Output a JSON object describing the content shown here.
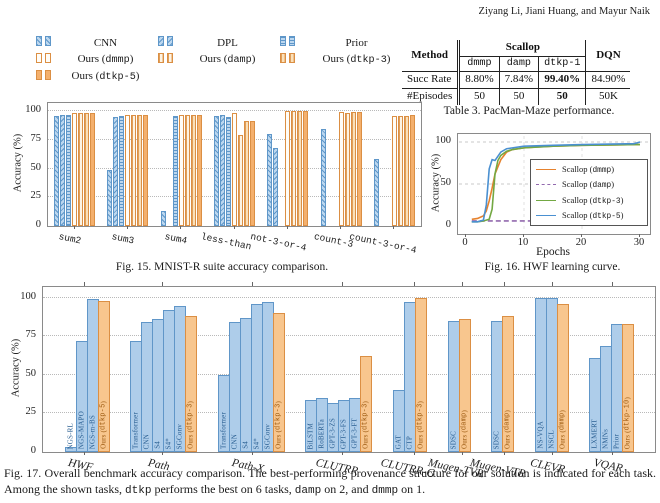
{
  "page": {
    "authors": "Ziyang Li, Jiani Huang, and Mayur Naik"
  },
  "fig15": {
    "caption": "Fig. 15.  MNIST-R suite accuracy comparison.",
    "chart_data": {
      "type": "bar",
      "ylabel": "Accuracy (%)",
      "ylim": [
        0,
        100
      ],
      "yticks": [
        0,
        25,
        50,
        75,
        100
      ],
      "grid": "dotted horizontal",
      "legend_position": "above",
      "categories": [
        "sum2",
        "sum3",
        "sum4",
        "less-than",
        "not-3-or-4",
        "count-3",
        "count-3-or-4"
      ],
      "series": [
        {
          "name": "CNN",
          "values": [
            96,
            49,
            13,
            96,
            80,
            84,
            58
          ]
        },
        {
          "name": "DPL",
          "values": [
            97,
            95,
            0,
            97,
            68,
            0,
            0
          ]
        },
        {
          "name": "Prior",
          "values": [
            97,
            96,
            96,
            95,
            0,
            0,
            0
          ]
        },
        {
          "name": "Ours (dmmp)",
          "values": [
            98,
            97,
            97,
            98,
            100,
            99,
            96
          ]
        },
        {
          "name": "Ours (damp)",
          "values": [
            98,
            97,
            97,
            79,
            100,
            98,
            96
          ]
        },
        {
          "name": "Ours (dtkp-3)",
          "values": [
            98,
            97,
            97,
            91,
            100,
            99,
            96
          ]
        },
        {
          "name": "Ours (dtkp-5)",
          "values": [
            98,
            97,
            97,
            91,
            100,
            99,
            97
          ]
        }
      ]
    }
  },
  "table3": {
    "caption": "Table 3.  PacMan-Maze performance.",
    "method_header": "Method",
    "group_header": "Scallop",
    "dqn_header": "DQN",
    "sub_headers": [
      "dmmp",
      "damp",
      "dtkp-1"
    ],
    "rows": [
      {
        "label": "Succ Rate",
        "values": [
          "8.80%",
          "7.84%",
          "99.40%",
          "84.90%"
        ],
        "bold_column": "dtkp-1"
      },
      {
        "label": "#Episodes",
        "values": [
          "50",
          "50",
          "50",
          "50K"
        ],
        "bold_column": "dtkp-1"
      }
    ]
  },
  "fig16": {
    "caption": "Fig. 16.  HWF learning curve.",
    "chart_data": {
      "type": "line",
      "xlabel": "Epochs",
      "ylabel": "Accuracy (%)",
      "xlim": [
        0,
        30
      ],
      "ylim": [
        0,
        100
      ],
      "xticks": [
        0,
        10,
        20,
        30
      ],
      "yticks": [
        0,
        50,
        100
      ],
      "grid": "dashed",
      "legend_position": "lower right",
      "series": [
        {
          "name": "Scallop (dmmp)",
          "color": "#e6822e",
          "dash": false,
          "points": [
            [
              1,
              8
            ],
            [
              2,
              9
            ],
            [
              3,
              12
            ],
            [
              3.5,
              18
            ],
            [
              4,
              30
            ],
            [
              4.5,
              45
            ],
            [
              5,
              62
            ],
            [
              6,
              79
            ],
            [
              7,
              88
            ],
            [
              8,
              91
            ],
            [
              10,
              93
            ],
            [
              12,
              94
            ],
            [
              15,
              95
            ],
            [
              20,
              96
            ],
            [
              25,
              96.5
            ],
            [
              30,
              97
            ]
          ]
        },
        {
          "name": "Scallop (damp)",
          "color": "#9269ae",
          "dash": true,
          "points": [
            [
              1,
              6
            ],
            [
              3,
              6
            ],
            [
              5,
              6
            ],
            [
              7,
              6
            ],
            [
              9,
              6
            ],
            [
              11,
              6
            ],
            [
              13,
              6
            ]
          ]
        },
        {
          "name": "Scallop (dtkp-3)",
          "color": "#73a843",
          "dash": false,
          "points": [
            [
              1,
              5
            ],
            [
              2,
              5
            ],
            [
              3,
              6
            ],
            [
              4,
              8
            ],
            [
              4.5,
              20
            ],
            [
              5,
              62
            ],
            [
              5.5,
              78
            ],
            [
              6,
              84
            ],
            [
              7,
              89
            ],
            [
              8,
              91
            ],
            [
              10,
              93
            ],
            [
              15,
              95
            ],
            [
              20,
              96
            ],
            [
              25,
              96.5
            ],
            [
              30,
              97
            ]
          ]
        },
        {
          "name": "Scallop (dtkp-5)",
          "color": "#4a90d1",
          "dash": false,
          "points": [
            [
              1,
              5
            ],
            [
              2,
              5
            ],
            [
              3,
              7
            ],
            [
              3.5,
              25
            ],
            [
              4,
              68
            ],
            [
              4.5,
              79
            ],
            [
              5,
              78
            ],
            [
              6,
              88
            ],
            [
              7,
              92
            ],
            [
              8,
              93
            ],
            [
              10,
              95
            ],
            [
              15,
              96
            ],
            [
              20,
              97
            ],
            [
              25,
              97.5
            ],
            [
              29,
              98
            ],
            [
              30,
              100
            ]
          ]
        }
      ]
    }
  },
  "fig17": {
    "caption": "Fig. 17.  Overall benchmark accuracy comparison. The best-performing provenance structure for our solution is indicated for each task. Among the shown tasks, dtkp performs the best on 6 tasks, damp on 2, and dmmp on 1.",
    "colors": {
      "baseline_blue": "#aecdea",
      "ours_orange": "#f8c68e"
    },
    "chart_data": {
      "type": "bar",
      "ylabel": "Accuracy (%)",
      "ylim": [
        0,
        100
      ],
      "yticks": [
        0,
        25,
        50,
        75,
        100
      ],
      "grid": "dotted horizontal",
      "groups": [
        {
          "category": "HWF",
          "bars": [
            {
              "label": "NGS-RL",
              "value": 3,
              "ours": false
            },
            {
              "label": "NGS-MAPO",
              "value": 72,
              "ours": false
            },
            {
              "label": "NGS-m-BS",
              "value": 99,
              "ours": false
            },
            {
              "label": "Ours (dtkp-5)",
              "value": 98,
              "ours": true
            }
          ]
        },
        {
          "category": "Path",
          "bars": [
            {
              "label": "Transformer",
              "value": 72,
              "ours": false
            },
            {
              "label": "CNN",
              "value": 84,
              "ours": false
            },
            {
              "label": "S4",
              "value": 86,
              "ours": false
            },
            {
              "label": "S4*",
              "value": 92,
              "ours": false
            },
            {
              "label": "SGConv",
              "value": 95,
              "ours": false
            },
            {
              "label": "Ours (dtkp-3)",
              "value": 88,
              "ours": true
            }
          ]
        },
        {
          "category": "Path-X",
          "bars": [
            {
              "label": "Transformer",
              "value": 50,
              "ours": false
            },
            {
              "label": "CNN",
              "value": 84,
              "ours": false
            },
            {
              "label": "S4",
              "value": 87,
              "ours": false
            },
            {
              "label": "S4*",
              "value": 96,
              "ours": false
            },
            {
              "label": "SGConv",
              "value": 97,
              "ours": false
            },
            {
              "label": "Ours (dtkp-3)",
              "value": 90,
              "ours": true
            }
          ]
        },
        {
          "category": "CLUTRR",
          "bars": [
            {
              "label": "BiLSTM",
              "value": 34,
              "ours": false
            },
            {
              "label": "RoBERTa",
              "value": 35,
              "ours": false
            },
            {
              "label": "GPT-3-ZS",
              "value": 32,
              "ours": false
            },
            {
              "label": "GPT-3-FS",
              "value": 34,
              "ours": false
            },
            {
              "label": "GPT-3-FT",
              "value": 35,
              "ours": false
            },
            {
              "label": "Ours (dtkp-3)",
              "value": 62,
              "ours": true
            }
          ]
        },
        {
          "category": "CLUTRR-G",
          "bars": [
            {
              "label": "GAT",
              "value": 40,
              "ours": false
            },
            {
              "label": "CTP",
              "value": 97,
              "ours": false
            },
            {
              "label": "Ours (dtkp-3)",
              "value": 100,
              "ours": true
            }
          ]
        },
        {
          "category": "Mugen-TVR",
          "bars": [
            {
              "label": "SDSC",
              "value": 85,
              "ours": false
            },
            {
              "label": "Ours (damp)",
              "value": 86,
              "ours": true
            }
          ]
        },
        {
          "category": "Mugen-VTR",
          "bars": [
            {
              "label": "SDSC",
              "value": 85,
              "ours": false
            },
            {
              "label": "Ours (damp)",
              "value": 88,
              "ours": true
            }
          ]
        },
        {
          "category": "CLEVR",
          "bars": [
            {
              "label": "NS-VQA",
              "value": 100,
              "ours": false
            },
            {
              "label": "NSCL",
              "value": 100,
              "ours": false
            },
            {
              "label": "Ours (dmmp)",
              "value": 96,
              "ours": true
            }
          ]
        },
        {
          "category": "VQAR",
          "bars": [
            {
              "label": "LXMERT",
              "value": 61,
              "ours": false
            },
            {
              "label": "NMNs",
              "value": 69,
              "ours": false
            },
            {
              "label": "Prior",
              "value": 83,
              "ours": false
            },
            {
              "label": "Ours (dtkp-10)",
              "value": 83,
              "ours": true
            }
          ]
        }
      ]
    }
  }
}
